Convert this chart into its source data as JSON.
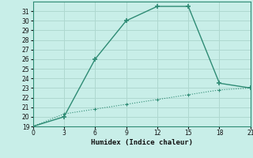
{
  "xlabel": "Humidex (Indice chaleur)",
  "line1_x": [
    0,
    3,
    6,
    9,
    12,
    15,
    18,
    21
  ],
  "line1_y": [
    19,
    20,
    26,
    30,
    31.5,
    31.5,
    23.5,
    23
  ],
  "line2_x": [
    0,
    3,
    6,
    9,
    12,
    15,
    18,
    21
  ],
  "line2_y": [
    19,
    20.3,
    20.8,
    21.3,
    21.8,
    22.3,
    22.8,
    23
  ],
  "line_color": "#2e8b74",
  "bg_color": "#c8eee8",
  "grid_color": "#afd8d0",
  "spine_color": "#2e8b74",
  "xlim": [
    0,
    21
  ],
  "ylim": [
    19,
    32
  ],
  "xticks": [
    0,
    3,
    6,
    9,
    12,
    15,
    18,
    21
  ],
  "yticks": [
    19,
    20,
    21,
    22,
    23,
    24,
    25,
    26,
    27,
    28,
    29,
    30,
    31
  ]
}
